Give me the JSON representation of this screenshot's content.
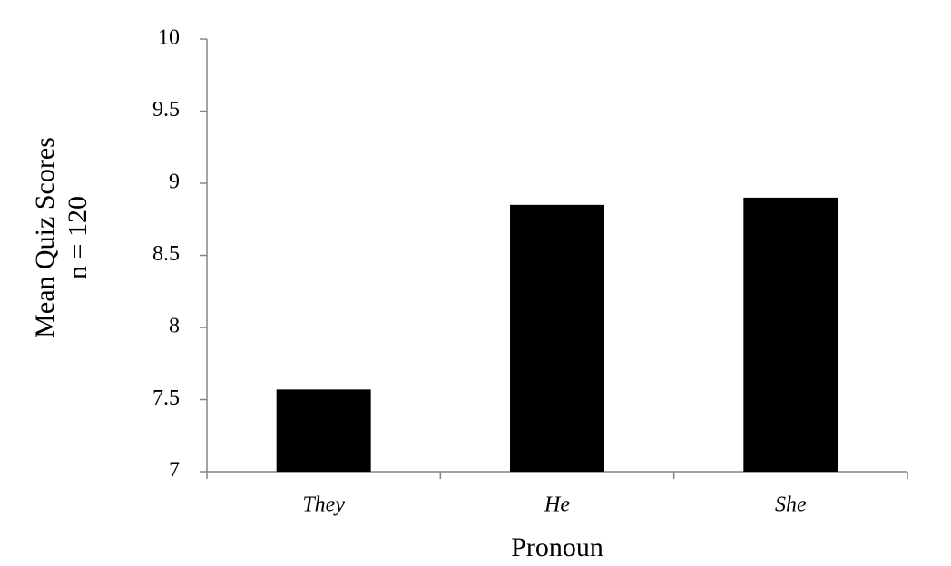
{
  "chart_data": {
    "type": "bar",
    "x_label": "Pronoun",
    "y_label": "Mean Quiz Scores",
    "y_label_sub": "n = 120",
    "categories": [
      "They",
      "He",
      "She"
    ],
    "values": [
      7.57,
      8.85,
      8.9
    ],
    "color": "#000000",
    "ylim": [
      7,
      10
    ],
    "yticks": [
      7,
      7.5,
      8,
      8.5,
      9,
      9.5,
      10
    ],
    "grid": false
  }
}
